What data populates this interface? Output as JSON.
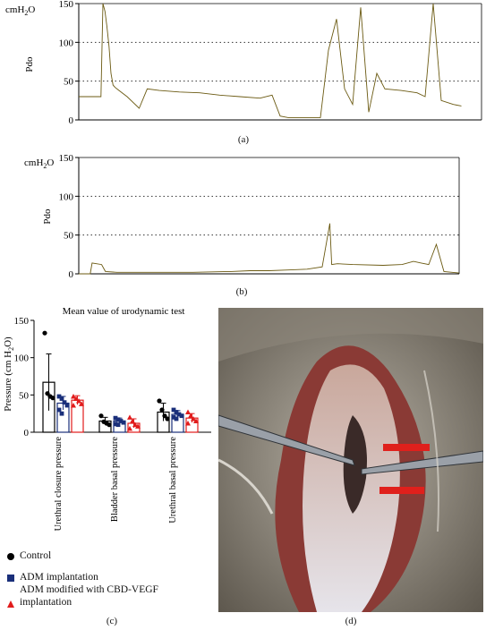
{
  "panel_a": {
    "unit": "cmH",
    "unit_sub": "2",
    "unit_end": "O",
    "ylabel": "Pdo",
    "ticks": [
      "150",
      "100",
      "50",
      "0"
    ],
    "caption": "(a)"
  },
  "panel_b": {
    "unit": "cmH",
    "unit_sub": "2",
    "unit_end": "O",
    "ylabel": "Pdo",
    "ticks": [
      "150",
      "100",
      "50",
      "0"
    ],
    "caption": "(b)"
  },
  "panel_c": {
    "title": "Mean value of urodynamic test",
    "ylabel": "Pressure (cm H",
    "ylabel_sub": "2",
    "ylabel_end": "O)",
    "ticks": [
      "150",
      "100",
      "50",
      "0"
    ],
    "caption": "(c)"
  },
  "panel_d": {
    "caption": "(d)"
  },
  "legend": {
    "items": [
      {
        "label": "Control",
        "color": "#000000",
        "marker": "circle"
      },
      {
        "label": "ADM implantation",
        "color": "#1a2f7a",
        "marker": "square"
      },
      {
        "label": "ADM modified with CBD-VEGF implantation",
        "color": "#e11c1c",
        "marker": "triangle"
      }
    ]
  },
  "chart_data": [
    {
      "type": "line",
      "panel": "a",
      "ylabel": "Pdo",
      "unit": "cmH2O",
      "ylim": [
        0,
        150
      ],
      "grid": "dotted at 50 and 100",
      "color": "#6b5a12",
      "x": [
        0,
        0.055,
        0.06,
        0.065,
        0.07,
        0.075,
        0.08,
        0.085,
        0.09,
        0.1,
        0.12,
        0.15,
        0.17,
        0.2,
        0.25,
        0.3,
        0.35,
        0.4,
        0.45,
        0.48,
        0.5,
        0.52,
        0.55,
        0.6,
        0.62,
        0.64,
        0.66,
        0.68,
        0.7,
        0.72,
        0.74,
        0.76,
        0.8,
        0.84,
        0.86,
        0.88,
        0.9,
        0.93,
        0.95
      ],
      "y": [
        30,
        30,
        150,
        140,
        120,
        95,
        60,
        45,
        42,
        38,
        30,
        15,
        40,
        38,
        36,
        35,
        32,
        30,
        28,
        32,
        5,
        3,
        3,
        3,
        90,
        130,
        40,
        20,
        145,
        10,
        60,
        40,
        38,
        35,
        30,
        150,
        25,
        20,
        18
      ]
    },
    {
      "type": "line",
      "panel": "b",
      "ylabel": "Pdo",
      "unit": "cmH2O",
      "ylim": [
        0,
        150
      ],
      "grid": "dotted at 50 and 100",
      "color": "#6b5a12",
      "x": [
        0,
        0.03,
        0.035,
        0.06,
        0.07,
        0.1,
        0.2,
        0.3,
        0.4,
        0.45,
        0.5,
        0.55,
        0.6,
        0.64,
        0.66,
        0.665,
        0.68,
        0.72,
        0.8,
        0.85,
        0.88,
        0.9,
        0.92,
        0.94,
        0.96,
        1.0
      ],
      "y": [
        0,
        0,
        14,
        12,
        3,
        2,
        2,
        2,
        3,
        4,
        4,
        5,
        6,
        9,
        65,
        12,
        13,
        12,
        11,
        12,
        16,
        14,
        12,
        38,
        3,
        1
      ]
    },
    {
      "type": "bar",
      "panel": "c",
      "title": "Mean value of urodynamic test",
      "ylabel": "Pressure (cm H2O)",
      "ylim": [
        0,
        150
      ],
      "categories": [
        "Urethral closure pressure",
        "Bladder basal pressure",
        "Urethral basal pressure"
      ],
      "series": [
        {
          "name": "Control",
          "values": [
            67,
            15,
            27
          ],
          "errors": [
            38,
            5,
            12
          ],
          "points": [
            [
              133,
              52,
              48,
              46
            ],
            [
              22,
              14,
              12,
              10
            ],
            [
              42,
              30,
              22,
              18
            ]
          ]
        },
        {
          "name": "ADM implantation",
          "values": [
            39,
            15,
            24
          ],
          "errors": [
            9,
            4,
            5
          ],
          "points": [
            [
              48,
              45,
              40,
              36,
              30,
              25
            ],
            [
              19,
              17,
              15,
              13,
              11,
              10
            ],
            [
              30,
              27,
              24,
              22,
              20,
              18
            ]
          ]
        },
        {
          "name": "ADM modified with CBD-VEGF implantation",
          "values": [
            43,
            12,
            19
          ],
          "errors": [
            6,
            6,
            6
          ],
          "points": [
            [
              48,
              45,
              42,
              38,
              36
            ],
            [
              20,
              15,
              10,
              8,
              5
            ],
            [
              27,
              22,
              18,
              15,
              12
            ]
          ]
        }
      ]
    }
  ]
}
